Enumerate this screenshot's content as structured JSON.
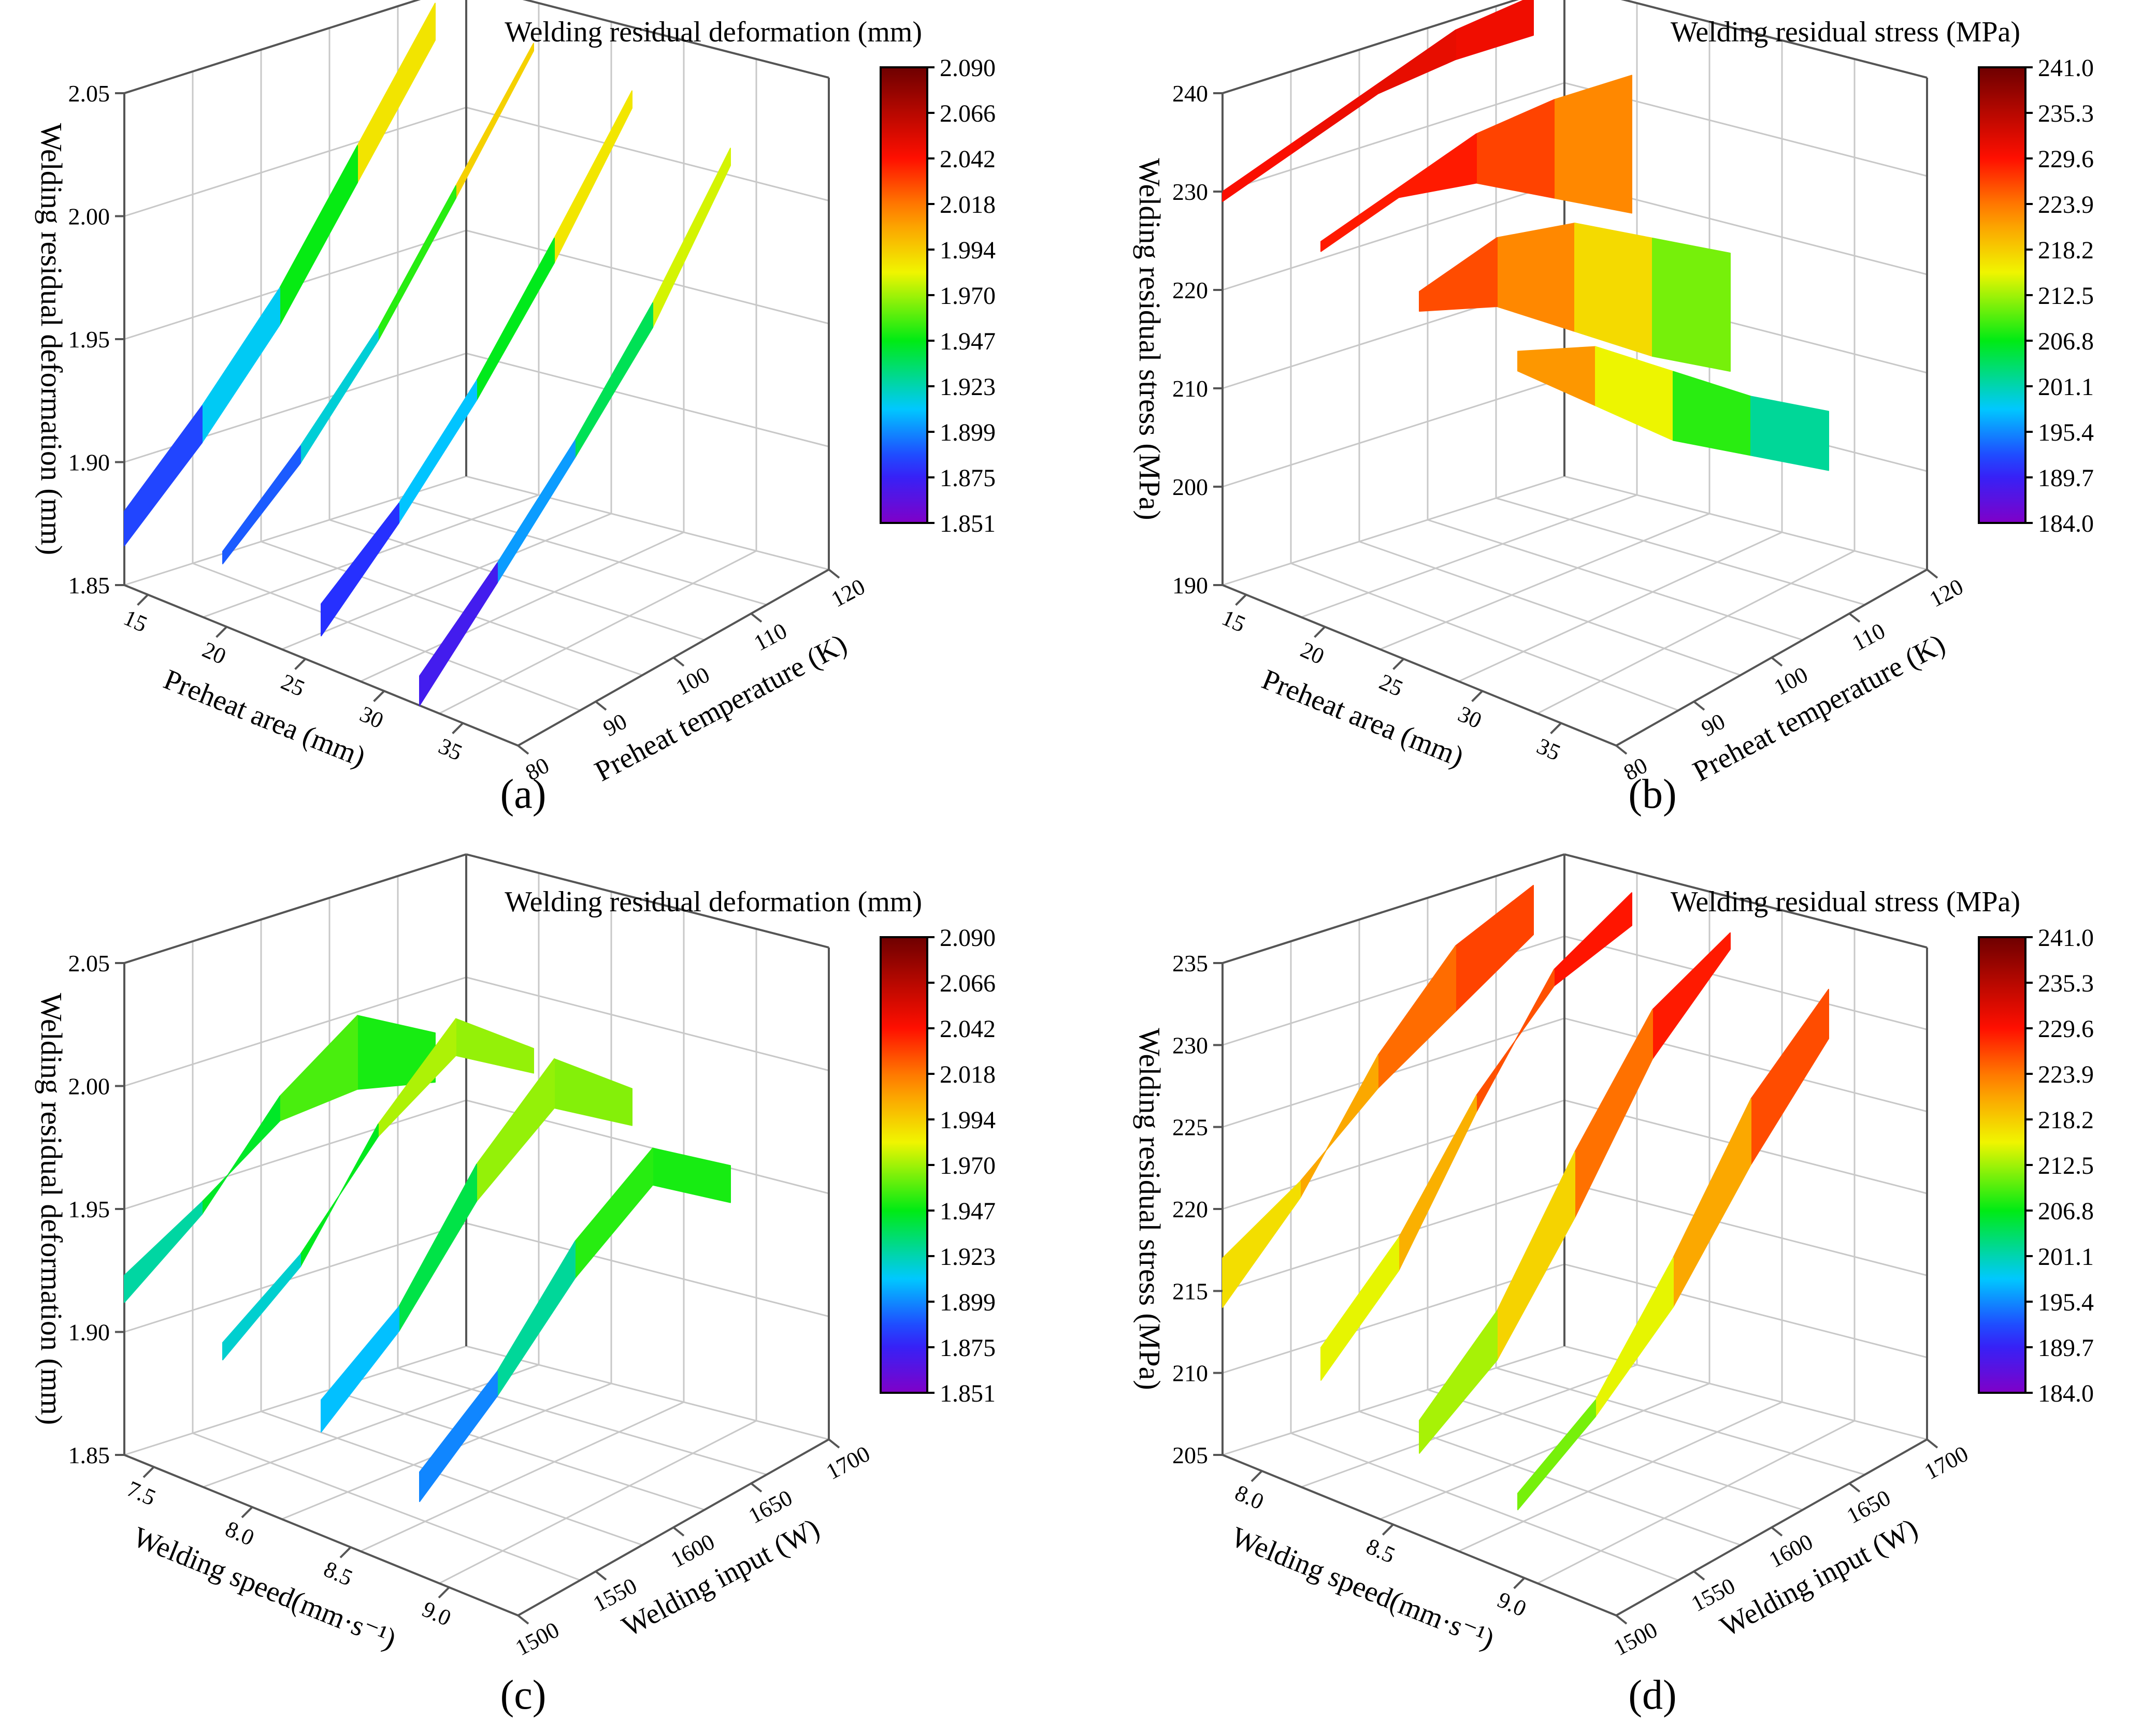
{
  "chart_data": [
    {
      "id": "a",
      "type": "surface3d",
      "caption": "(a)",
      "colorbar_title": "Welding residual deformation (mm)",
      "colorbar_ticks": [
        "2.090",
        "2.066",
        "2.042",
        "2.018",
        "1.994",
        "1.970",
        "1.947",
        "1.923",
        "1.899",
        "1.875",
        "1.851"
      ],
      "colorbar_range": [
        1.851,
        2.09
      ],
      "zlabel": "Welding residual deformation (mm)",
      "z_ticks": [
        "1.85",
        "1.90",
        "1.95",
        "2.00",
        "2.05"
      ],
      "z_range": [
        1.85,
        2.05
      ],
      "xlabel": "Preheat area (mm)",
      "x_ticks": [
        "15",
        "20",
        "25",
        "30",
        "35"
      ],
      "ylabel": "Preheat temperature (K)",
      "y_ticks": [
        "80",
        "90",
        "100",
        "110",
        "120"
      ],
      "grid": [
        [
          1.866,
          1.88,
          1.875,
          1.862,
          1.85
        ],
        [
          1.89,
          1.905,
          1.898,
          1.89,
          1.882
        ],
        [
          1.92,
          1.935,
          1.93,
          1.922,
          1.915
        ],
        [
          1.96,
          1.975,
          1.97,
          1.96,
          1.95
        ],
        [
          2.0,
          2.015,
          2.012,
          2.005,
          1.998
        ]
      ]
    },
    {
      "id": "b",
      "type": "surface3d",
      "caption": "(b)",
      "colorbar_title": "Welding residual stress (MPa)",
      "colorbar_ticks": [
        "241.0",
        "235.3",
        "229.6",
        "223.9",
        "218.2",
        "212.5",
        "206.8",
        "201.1",
        "195.4",
        "189.7",
        "184.0"
      ],
      "colorbar_range": [
        184.0,
        241.0
      ],
      "zlabel": "Welding residual stress (MPa)",
      "z_ticks": [
        "190",
        "200",
        "210",
        "220",
        "230",
        "240"
      ],
      "z_range": [
        190,
        240
      ],
      "xlabel": "Preheat area (mm)",
      "x_ticks": [
        "15",
        "20",
        "25",
        "30",
        "35"
      ],
      "ylabel": "Preheat temperature (K)",
      "y_ticks": [
        "80",
        "90",
        "100",
        "110",
        "120"
      ],
      "grid": [
        [
          230,
          229,
          228,
          226,
          224
        ],
        [
          231,
          230,
          229,
          222,
          216
        ],
        [
          232,
          231,
          226,
          215,
          208
        ],
        [
          233,
          230,
          220,
          208,
          202
        ],
        [
          232,
          228,
          214,
          202,
          196
        ]
      ]
    },
    {
      "id": "c",
      "type": "surface3d",
      "caption": "(c)",
      "colorbar_title": "Welding residual deformation (mm)",
      "colorbar_ticks": [
        "2.090",
        "2.066",
        "2.042",
        "2.018",
        "1.994",
        "1.970",
        "1.947",
        "1.923",
        "1.899",
        "1.875",
        "1.851"
      ],
      "colorbar_range": [
        1.851,
        2.09
      ],
      "zlabel": "Welding residual deformation (mm)",
      "z_ticks": [
        "1.85",
        "1.90",
        "1.95",
        "2.00",
        "2.05"
      ],
      "z_range": [
        1.85,
        2.05
      ],
      "xlabel": "Welding speed(mm·s⁻¹)",
      "x_ticks": [
        "7.5",
        "8.0",
        "8.5",
        "9.0"
      ],
      "ylabel": "Welding input (W)",
      "y_ticks": [
        "1500",
        "1550",
        "1600",
        "1650",
        "1700"
      ],
      "grid": [
        [
          1.923,
          1.912,
          1.905,
          1.892,
          1.88
        ],
        [
          1.935,
          1.93,
          1.925,
          1.915,
          1.905
        ],
        [
          1.95,
          1.96,
          1.965,
          1.95,
          1.935
        ],
        [
          1.945,
          1.975,
          1.99,
          1.97,
          1.955
        ],
        [
          1.93,
          1.95,
          1.96,
          1.945,
          1.93
        ]
      ]
    },
    {
      "id": "d",
      "type": "surface3d",
      "caption": "(d)",
      "colorbar_title": "Welding residual stress (MPa)",
      "colorbar_ticks": [
        "241.0",
        "235.3",
        "229.6",
        "223.9",
        "218.2",
        "212.5",
        "206.8",
        "201.1",
        "195.4",
        "189.7",
        "184.0"
      ],
      "colorbar_range": [
        184.0,
        241.0
      ],
      "zlabel": "Welding residual stress (MPa)",
      "z_ticks": [
        "205",
        "210",
        "215",
        "220",
        "225",
        "230",
        "235"
      ],
      "z_range": [
        205,
        235
      ],
      "xlabel": "Welding speed(mm·s⁻¹)",
      "x_ticks": [
        "8.0",
        "8.5",
        "9.0"
      ],
      "ylabel": "Welding input (W)",
      "y_ticks": [
        "1500",
        "1550",
        "1600",
        "1650",
        "1700"
      ],
      "grid": [
        [
          217,
          214,
          212,
          210,
          209
        ],
        [
          219,
          218,
          216,
          213,
          212
        ],
        [
          222,
          224,
          223,
          219,
          216
        ],
        [
          224,
          228,
          229,
          226,
          222
        ],
        [
          226,
          229,
          231,
          230,
          227
        ]
      ]
    }
  ]
}
